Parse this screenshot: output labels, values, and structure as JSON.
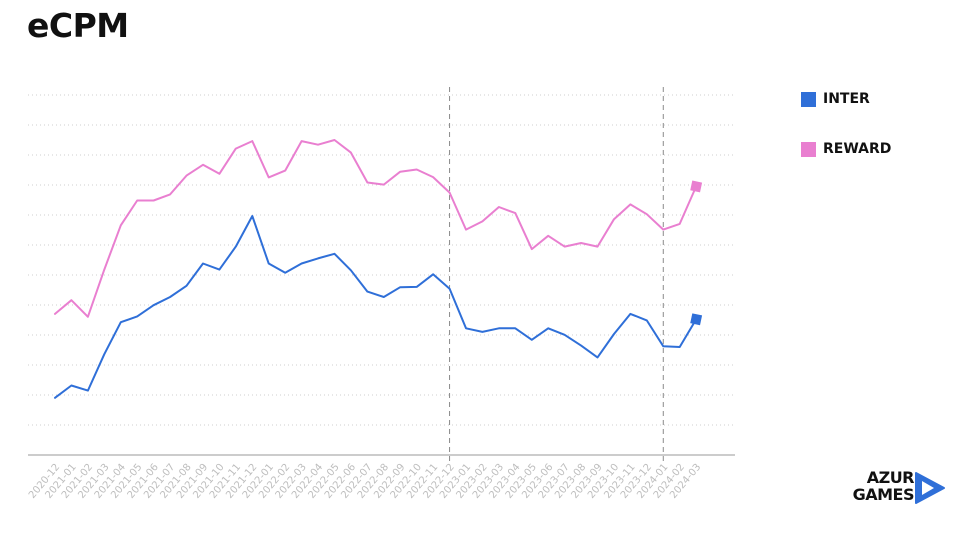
{
  "page": {
    "title": "eCPM"
  },
  "legend": {
    "items": [
      {
        "label": "INTER",
        "color": "#2F6FD8"
      },
      {
        "label": "REWARD",
        "color": "#E97FD0"
      }
    ]
  },
  "logo": {
    "line1": "AZUR",
    "line2": "GAMES",
    "icon": "play-triangle-icon",
    "color": "#2F6FD8"
  },
  "chart_data": {
    "type": "line",
    "title": "eCPM",
    "xlabel": "",
    "ylabel": "",
    "y_tick_labels_shown": false,
    "grid": "horizontal dotted",
    "legend_position": "right",
    "ylim": [
      0,
      100
    ],
    "categories": [
      "2020-12",
      "2021-01",
      "2021-02",
      "2021-03",
      "2021-04",
      "2021-05",
      "2021-06",
      "2021-07",
      "2021-08",
      "2021-09",
      "2021-10",
      "2021-11",
      "2021-12",
      "2022-01",
      "2022-02",
      "2022-03",
      "2022-04",
      "2022-05",
      "2022-06",
      "2022-07",
      "2022-08",
      "2022-09",
      "2022-10",
      "2022-11",
      "2022-12",
      "2023-01",
      "2023-02",
      "2023-03",
      "2023-04",
      "2023-05",
      "2023-06",
      "2023-07",
      "2023-08",
      "2023-09",
      "2023-10",
      "2023-11",
      "2023-12",
      "2024-01",
      "2024-02",
      "2024-03"
    ],
    "markers": [
      "2022-12",
      "2024-01"
    ],
    "series": [
      {
        "name": "INTER",
        "color": "#2F6FD8",
        "values": [
          15.9,
          19.3,
          17.9,
          28,
          36.9,
          38.5,
          41.6,
          43.9,
          47,
          53.2,
          51.5,
          57.9,
          66.4,
          53.2,
          50.6,
          53.2,
          54.6,
          55.9,
          51.3,
          45.4,
          43.9,
          46.6,
          46.7,
          50.2,
          46.2,
          35.2,
          34.2,
          35.2,
          35.2,
          32,
          35.2,
          33.4,
          30.4,
          27.1,
          33.6,
          39.2,
          37.4,
          30.2,
          30,
          37.7
        ],
        "end_marker": true
      },
      {
        "name": "REWARD",
        "color": "#E97FD0",
        "values": [
          39.2,
          43,
          38.4,
          51.5,
          63.8,
          70.7,
          70.7,
          72.4,
          77.6,
          80.6,
          78.1,
          85.1,
          87.2,
          77.1,
          79,
          87.2,
          86.2,
          87.5,
          84,
          75.7,
          75.1,
          78.7,
          79.3,
          77.2,
          72.9,
          62.6,
          64.9,
          68.9,
          67.2,
          57.2,
          60.9,
          57.9,
          58.9,
          57.9,
          65.5,
          69.6,
          66.9,
          62.6,
          64.2,
          74.6
        ],
        "end_marker": true
      }
    ]
  }
}
